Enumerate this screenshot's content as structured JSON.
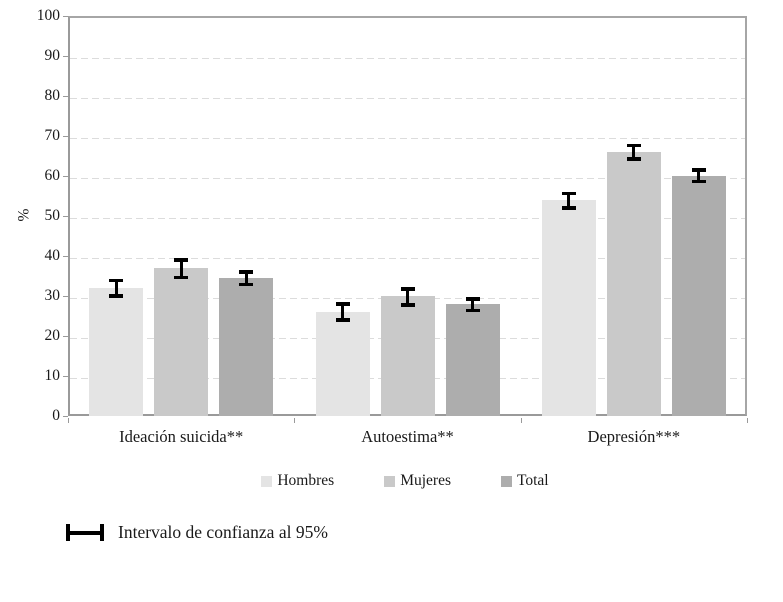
{
  "chart_data": {
    "type": "bar",
    "title": "",
    "xlabel": "",
    "ylabel": "%",
    "ylim": [
      0,
      100
    ],
    "ytick_step": 10,
    "grid": "horizontal-dashed",
    "legend_position": "bottom",
    "error_bars": true,
    "ci_note": "Intervalo de confianza al 95%",
    "categories": [
      "Ideación suicida**",
      "Autoestima**",
      "Depresión***"
    ],
    "series": [
      {
        "name": "Hombres",
        "color": "#e4e4e4",
        "values": [
          32,
          26,
          54
        ],
        "ci_low": [
          29.5,
          23.5,
          51.5
        ],
        "ci_high": [
          34.3,
          28.4,
          56.1
        ]
      },
      {
        "name": "Mujeres",
        "color": "#c9c9c9",
        "values": [
          37,
          30,
          66
        ],
        "ci_low": [
          34.2,
          27.3,
          63.8
        ],
        "ci_high": [
          39.5,
          32.2,
          68.1
        ]
      },
      {
        "name": "Total",
        "color": "#adadad",
        "values": [
          34.5,
          28,
          60
        ],
        "ci_low": [
          32.4,
          25.9,
          58.2
        ],
        "ci_high": [
          36.4,
          29.7,
          61.9
        ]
      }
    ],
    "colors": {
      "axis": "#9a9a9a",
      "plot_border": "#a6a6a6",
      "gridline": "#dcdcdc",
      "error_bar": "#000000",
      "text": "#1a1a1a",
      "background": "#ffffff"
    }
  }
}
